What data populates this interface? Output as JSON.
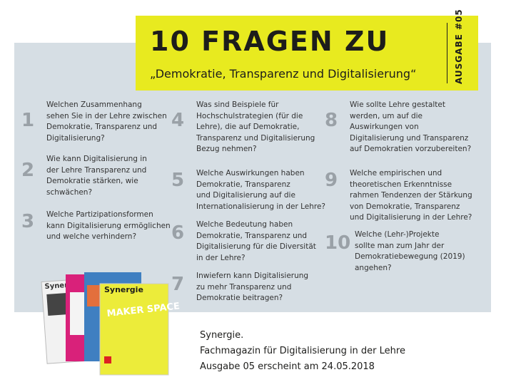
{
  "header": {
    "title": "10 FRAGEN ZU",
    "subtitle": "„Demokratie, Transparenz und Digitalisierung“",
    "issue": "AUSGABE #05"
  },
  "questions": [
    {
      "number": "1",
      "lines": [
        "Welchen Zusammenhang",
        "sehen Sie in der Lehre zwischen",
        "Demokratie, Transparenz und",
        "Digitalisierung?"
      ]
    },
    {
      "number": "2",
      "lines": [
        "Wie kann Digitalisierung in",
        "der Lehre Transparenz und",
        "Demokratie stärken, wie",
        "schwächen?"
      ]
    },
    {
      "number": "3",
      "lines": [
        "Welche Partizipationsformen",
        "kann Digitalisierung ermöglichen",
        "und welche verhindern?"
      ]
    },
    {
      "number": "4",
      "lines": [
        "Was sind Beispiele für",
        "Hochschulstrategien (für die",
        "Lehre), die auf Demokratie,",
        "Transparenz und Digitalisierung",
        "Bezug nehmen?"
      ]
    },
    {
      "number": "5",
      "lines": [
        "Welche Auswirkungen haben",
        "Demokratie, Transparenz",
        "und Digitalisierung auf die",
        "Internationalisierung in der Lehre?"
      ]
    },
    {
      "number": "6",
      "lines": [
        "Welche Bedeutung haben",
        "Demokratie, Transparenz und",
        "Digitalisierung für die Diversität",
        "in der Lehre?"
      ]
    },
    {
      "number": "7",
      "lines": [
        "Inwiefern kann Digitalisierung",
        "zu mehr Transparenz und",
        "Demokratie beitragen?"
      ]
    },
    {
      "number": "8",
      "lines": [
        "Wie sollte Lehre gestaltet",
        "werden, um auf die",
        "Auswirkungen von",
        "Digitalisierung und Transparenz",
        "auf Demokratien vorzubereiten?"
      ]
    },
    {
      "number": "9",
      "lines": [
        "Welche empirischen und",
        "theoretischen Erkenntnisse",
        "rahmen Tendenzen der Stärkung",
        "von Demokratie, Transparenz",
        "und Digitalisierung in der Lehre?"
      ]
    },
    {
      "number": "10",
      "lines": [
        "Welche (Lehr-)Projekte",
        "sollte man zum Jahr der",
        "Demokratiebewegung (2019)",
        "angehen?"
      ]
    }
  ],
  "covers": {
    "name": "Synergie",
    "headline": "MAKER SPACE"
  },
  "footer": {
    "lines": [
      "Synergie.",
      "Fachmagazin für Digitalisierung in der Lehre",
      "Ausgabe 05 erscheint am 24.05.2018"
    ]
  }
}
